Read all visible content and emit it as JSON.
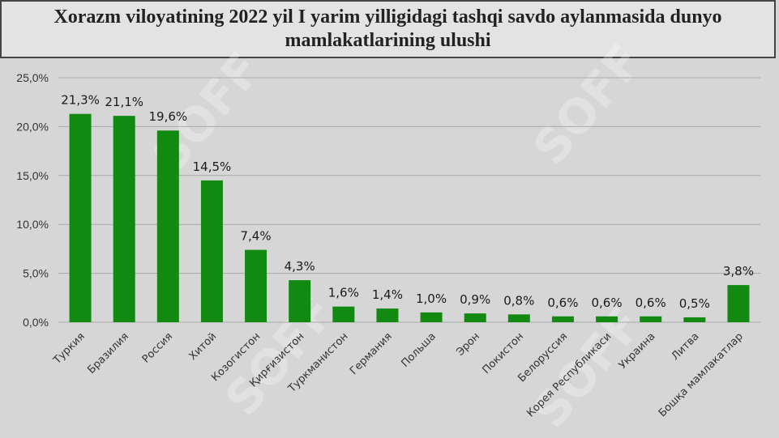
{
  "title": "Xorazm viloyatining 2022 yil I yarim yilligidagi tashqi savdo aylanmasida dunyo mamlakatlarining ulushi",
  "watermark": "SOFF",
  "colors": {
    "bar": "#128a12",
    "grid": "#a9a9a9",
    "axis_text": "#333333",
    "label_text": "#1a1a1a"
  },
  "chart_data": {
    "type": "bar",
    "title": "",
    "xlabel": "",
    "ylabel": "",
    "ylim": [
      0,
      25
    ],
    "ytick_values": [
      0,
      5,
      10,
      15,
      20,
      25
    ],
    "ytick_labels": [
      "0,0%",
      "5,0%",
      "10,0%",
      "15,0%",
      "20,0%",
      "25,0%"
    ],
    "grid": true,
    "legend": "none",
    "categories": [
      "Туркия",
      "Бразилия",
      "Россия",
      "Хитой",
      "Козогистон",
      "Қирғизистон",
      "Туркманистон",
      "Германия",
      "Польша",
      "Эрон",
      "Покистон",
      "Белоруссия",
      "Корея Республикаси",
      "Украина",
      "Литва",
      "Бошқа мамлакатлар"
    ],
    "values": [
      21.3,
      21.1,
      19.6,
      14.5,
      7.4,
      4.3,
      1.6,
      1.4,
      1.0,
      0.9,
      0.8,
      0.6,
      0.6,
      0.6,
      0.5,
      3.8
    ],
    "data_labels": [
      "21,3%",
      "21,1%",
      "19,6%",
      "14,5%",
      "7,4%",
      "4,3%",
      "1,6%",
      "1,4%",
      "1,0%",
      "0,9%",
      "0,8%",
      "0,6%",
      "0,6%",
      "0,6%",
      "0,5%",
      "3,8%"
    ]
  }
}
